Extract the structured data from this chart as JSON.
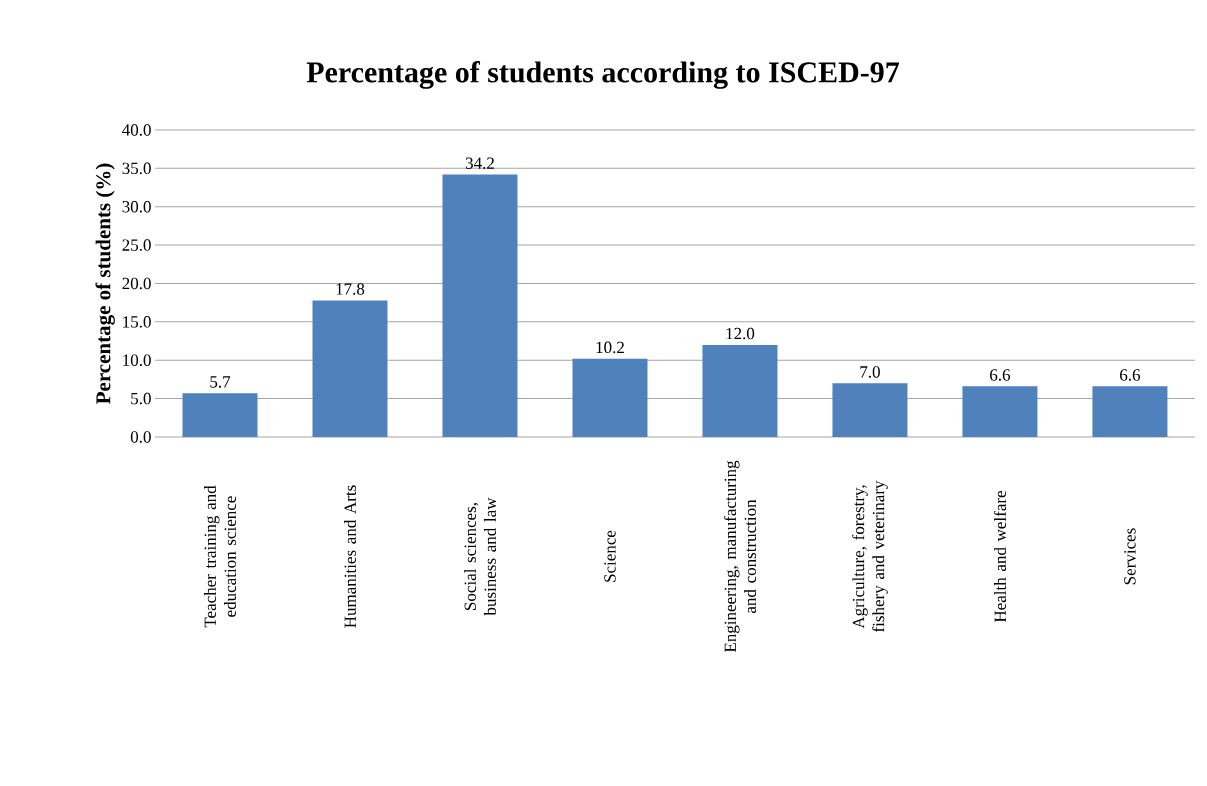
{
  "chart_data": {
    "type": "bar",
    "title": "Percentage of students according to ISCED-97",
    "ylabel": "Percentage of students (%)",
    "categories": [
      "Teacher training and education science",
      "Humanities and Arts",
      "Social sciences, business and law",
      "Science",
      "Engineering, manufacturing and construction",
      "Agriculture, forestry, fishery and veterinary",
      "Health and welfare",
      "Services"
    ],
    "values": [
      5.7,
      17.8,
      34.2,
      10.2,
      12.0,
      7.0,
      6.6,
      6.6
    ],
    "value_labels": [
      "5.7",
      "17.8",
      "34.2",
      "10.2",
      "12.0",
      "7.0",
      "6.6",
      "6.6"
    ],
    "color": "#4f81bd",
    "ylim": [
      0,
      40
    ],
    "yticks": [
      {
        "value": 0,
        "label": "0.0"
      },
      {
        "value": 5,
        "label": "5.0"
      },
      {
        "value": 10,
        "label": "10.0"
      },
      {
        "value": 15,
        "label": "15.0"
      },
      {
        "value": 20,
        "label": "20.0"
      },
      {
        "value": 25,
        "label": "25.0"
      },
      {
        "value": 30,
        "label": "30.0"
      },
      {
        "value": 35,
        "label": "35.0"
      },
      {
        "value": 40,
        "label": "40.0"
      }
    ],
    "grid": "y"
  }
}
